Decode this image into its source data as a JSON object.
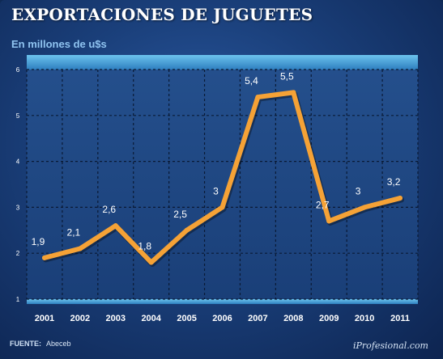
{
  "title": "EXPORTACIONES DE JUGUETES",
  "subtitle": "En millones de u$s",
  "source_label": "FUENTE:",
  "source_value": "Abeceb",
  "credit": "iProfesional.com",
  "colors": {
    "line": "#f5a236",
    "plot_bg": "#1e467f",
    "band": "#4aa8dc"
  },
  "chart_data": {
    "type": "line",
    "categories": [
      "2001",
      "2002",
      "2003",
      "2004",
      "2005",
      "2006",
      "2007",
      "2008",
      "2009",
      "2010",
      "2011"
    ],
    "series": [
      {
        "values": [
          1.9,
          2.1,
          2.6,
          1.8,
          2.5,
          3.0,
          5.4,
          5.5,
          2.7,
          3.0,
          3.2
        ],
        "labels": [
          "1,9",
          "2,1",
          "2,6",
          "1,8",
          "2,5",
          "3",
          "5,4",
          "5,5",
          "2,7",
          "3",
          "3,2"
        ]
      }
    ],
    "yticks": [
      "1",
      "2",
      "3",
      "4",
      "5",
      "6"
    ],
    "ylim": [
      1,
      6
    ],
    "grid": true,
    "title": "EXPORTACIONES DE JUGUETES",
    "ylabel": "En millones de u$s",
    "xlabel": ""
  }
}
